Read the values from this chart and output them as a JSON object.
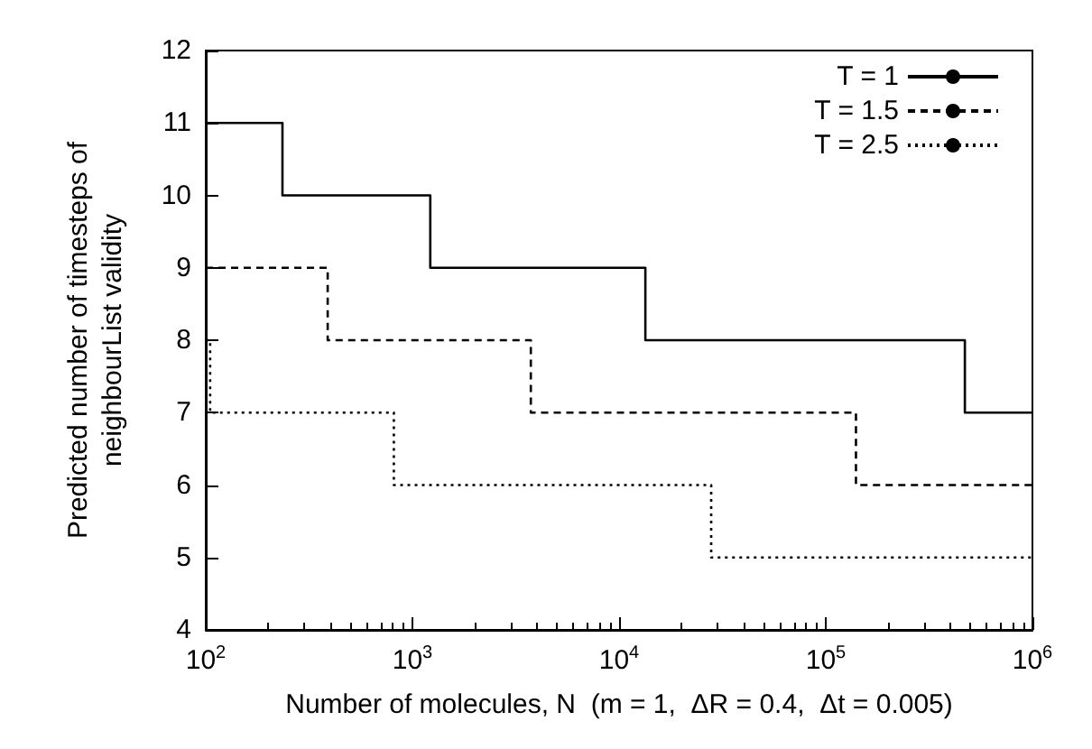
{
  "chart_data": {
    "type": "step",
    "xlabel": "Number of molecules, N  (m = 1,  ΔR = 0.4,  Δt = 0.005)",
    "ylabel": "Predicted number of timesteps of\nneighbourList validity",
    "log": "x",
    "grid": false,
    "legend": "top right",
    "marker": "none",
    "xlim": [
      100,
      1000000
    ],
    "xticks": [
      {
        "value": 100,
        "label": "10$^{2}$"
      },
      {
        "value": 1000,
        "label": "10$^{3}$"
      },
      {
        "value": 10000,
        "label": "10$^{4}$"
      },
      {
        "value": 100000,
        "label": "10$^{5}$"
      },
      {
        "value": 1000000,
        "label": "10$^{6}$"
      }
    ],
    "ylim": [
      4,
      12
    ],
    "yticks": [
      4,
      5,
      6,
      7,
      8,
      9,
      10,
      11,
      12
    ],
    "series": [
      {
        "name": "T = 1",
        "color": "#000000",
        "line_style": "solid",
        "x": [
          100,
          235,
          1220,
          13400,
          471000,
          1000000
        ],
        "values": [
          11,
          10,
          9,
          8,
          7,
          7
        ]
      },
      {
        "name": "T = 1.5",
        "color": "#000000",
        "line_style": "dashed",
        "x": [
          100,
          389,
          3740,
          140000,
          1000000
        ],
        "values": [
          9,
          8,
          7,
          6,
          6
        ]
      },
      {
        "name": "T = 2.5",
        "color": "#000000",
        "line_style": "dotted",
        "x": [
          100,
          105,
          813,
          27900,
          1000000
        ],
        "values": [
          8,
          7,
          6,
          5,
          5
        ]
      }
    ]
  }
}
